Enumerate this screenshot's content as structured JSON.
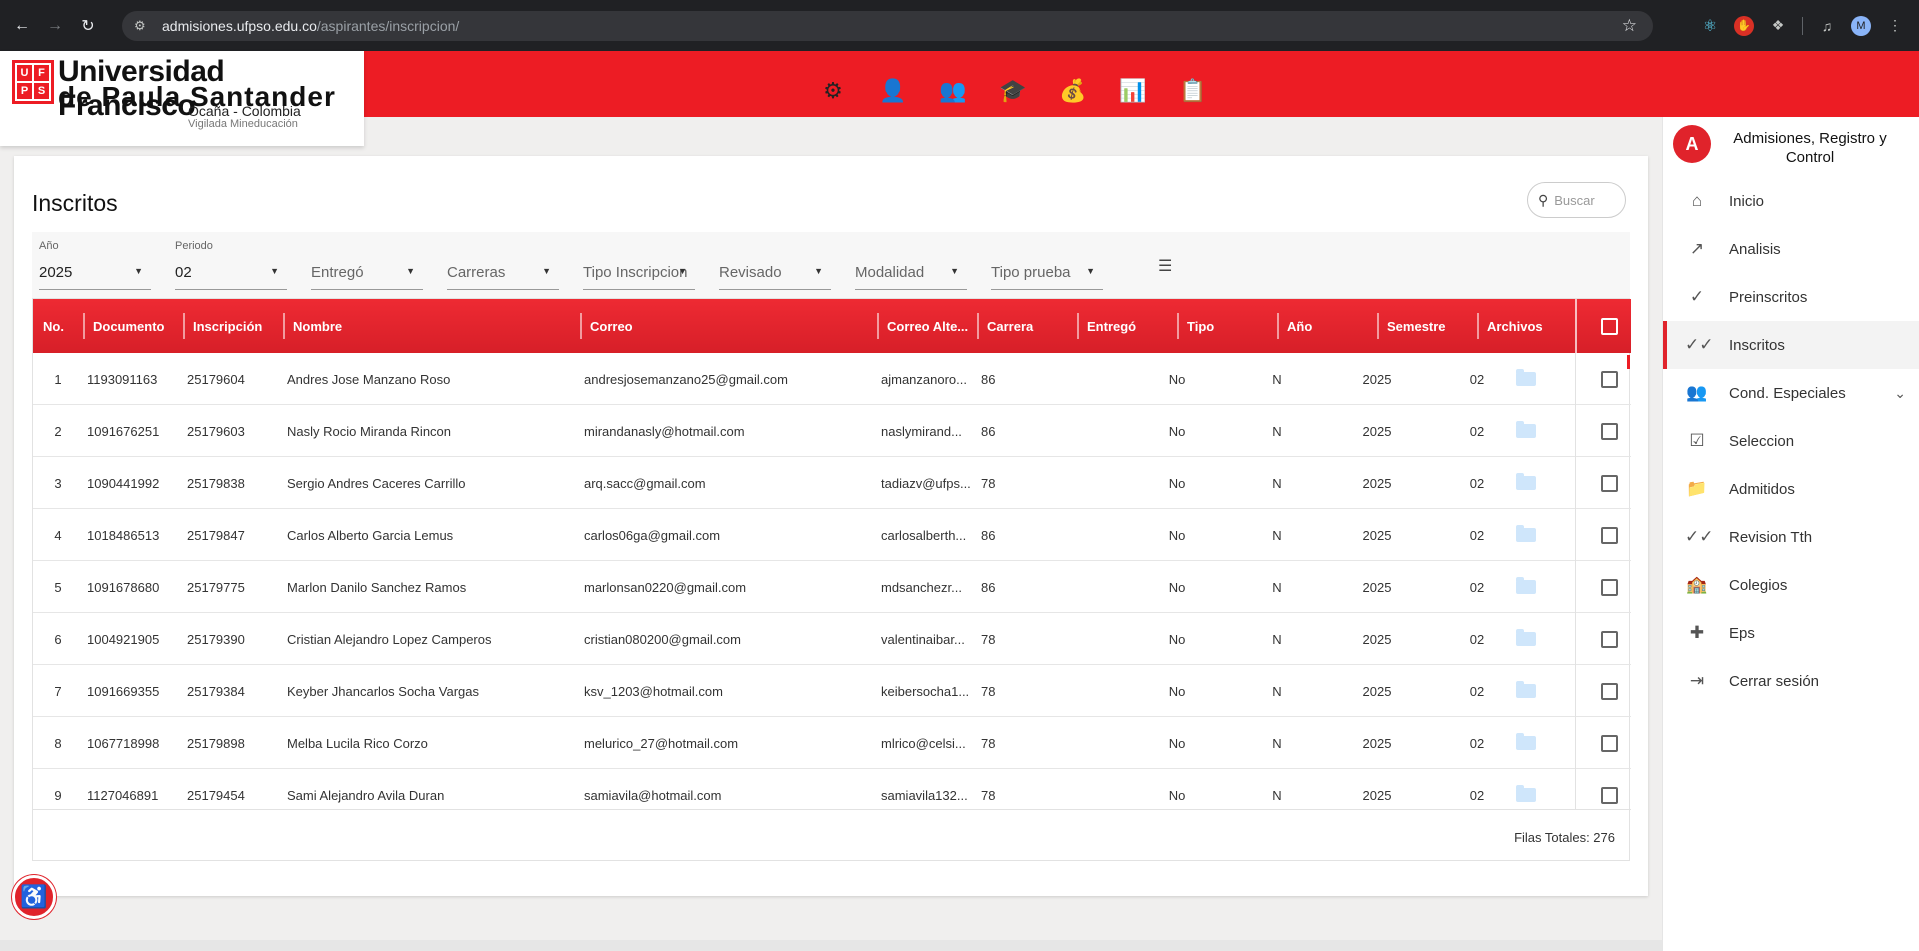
{
  "browser": {
    "url_host": "admisiones.ufpso.edu.co",
    "url_path": "/aspirantes/inscripcion/",
    "profile_initial": "M"
  },
  "header": {
    "logo_mark": [
      "U",
      "F",
      "P",
      "S"
    ],
    "logo_line1": "Universidad Francisco",
    "logo_line2": "de Paula Santander",
    "logo_line3": "Ocaña - Colombia",
    "logo_line4": "Vigilada Mineducación",
    "accent_color": "#ed1c24"
  },
  "sidebar": {
    "avatar_initial": "A",
    "title": "Admisiones, Registro y Control",
    "items": [
      {
        "label": "Inicio",
        "icon": "home-icon"
      },
      {
        "label": "Analisis",
        "icon": "trending-icon"
      },
      {
        "label": "Preinscritos",
        "icon": "check-icon"
      },
      {
        "label": "Inscritos",
        "icon": "double-check-icon"
      },
      {
        "label": "Cond. Especiales",
        "icon": "people-icon"
      },
      {
        "label": "Seleccion",
        "icon": "clipboard-check-icon"
      },
      {
        "label": "Admitidos",
        "icon": "folder-icon"
      },
      {
        "label": "Revision Tth",
        "icon": "double-check-icon"
      },
      {
        "label": "Colegios",
        "icon": "school-icon"
      },
      {
        "label": "Eps",
        "icon": "medical-bag-icon"
      },
      {
        "label": "Cerrar sesión",
        "icon": "logout-icon"
      }
    ]
  },
  "main": {
    "title": "Inscritos",
    "search_placeholder": "Buscar",
    "filters": [
      {
        "label": "Año",
        "value": "2025"
      },
      {
        "label": "Periodo",
        "value": "02"
      },
      {
        "label": "",
        "value": "Entregó"
      },
      {
        "label": "",
        "value": "Carreras"
      },
      {
        "label": "",
        "value": "Tipo Inscripcion"
      },
      {
        "label": "",
        "value": "Revisado"
      },
      {
        "label": "",
        "value": "Modalidad"
      },
      {
        "label": "",
        "value": "Tipo prueba"
      }
    ],
    "columns": [
      "No.",
      "Documento",
      "Inscripción",
      "Nombre",
      "Correo",
      "Correo Alte...",
      "Carrera",
      "Entregó",
      "Tipo",
      "Año",
      "Semestre",
      "Archivos"
    ],
    "rows": [
      [
        "1",
        "1193091163",
        "25179604",
        "Andres Jose Manzano Roso",
        "andresjosemanzano25@gmail.com",
        "ajmanzanoro...",
        "86",
        "No",
        "N",
        "2025",
        "02"
      ],
      [
        "2",
        "1091676251",
        "25179603",
        "Nasly Rocio Miranda Rincon",
        "mirandanasly@hotmail.com",
        "naslymirand...",
        "86",
        "No",
        "N",
        "2025",
        "02"
      ],
      [
        "3",
        "1090441992",
        "25179838",
        "Sergio Andres Caceres Carrillo",
        "arq.sacc@gmail.com",
        "tadiazv@ufps...",
        "78",
        "No",
        "N",
        "2025",
        "02"
      ],
      [
        "4",
        "1018486513",
        "25179847",
        "Carlos Alberto Garcia Lemus",
        "carlos06ga@gmail.com",
        "carlosalberth...",
        "86",
        "No",
        "N",
        "2025",
        "02"
      ],
      [
        "5",
        "1091678680",
        "25179775",
        "Marlon Danilo Sanchez Ramos",
        "marlonsan0220@gmail.com",
        "mdsanchezr...",
        "86",
        "No",
        "N",
        "2025",
        "02"
      ],
      [
        "6",
        "1004921905",
        "25179390",
        "Cristian Alejandro Lopez Camperos",
        "cristian080200@gmail.com",
        "valentinaibar...",
        "78",
        "No",
        "N",
        "2025",
        "02"
      ],
      [
        "7",
        "1091669355",
        "25179384",
        "Keyber Jhancarlos Socha Vargas",
        "ksv_1203@hotmail.com",
        "keibersocha1...",
        "78",
        "No",
        "N",
        "2025",
        "02"
      ],
      [
        "8",
        "1067718998",
        "25179898",
        "Melba Lucila Rico Corzo",
        "melurico_27@hotmail.com",
        "mlrico@celsi...",
        "78",
        "No",
        "N",
        "2025",
        "02"
      ],
      [
        "9",
        "1127046891",
        "25179454",
        "Sami Alejandro Avila Duran",
        "samiavila@hotmail.com",
        "samiavila132...",
        "78",
        "No",
        "N",
        "2025",
        "02"
      ]
    ],
    "total_label": "Filas Totales: 276"
  }
}
